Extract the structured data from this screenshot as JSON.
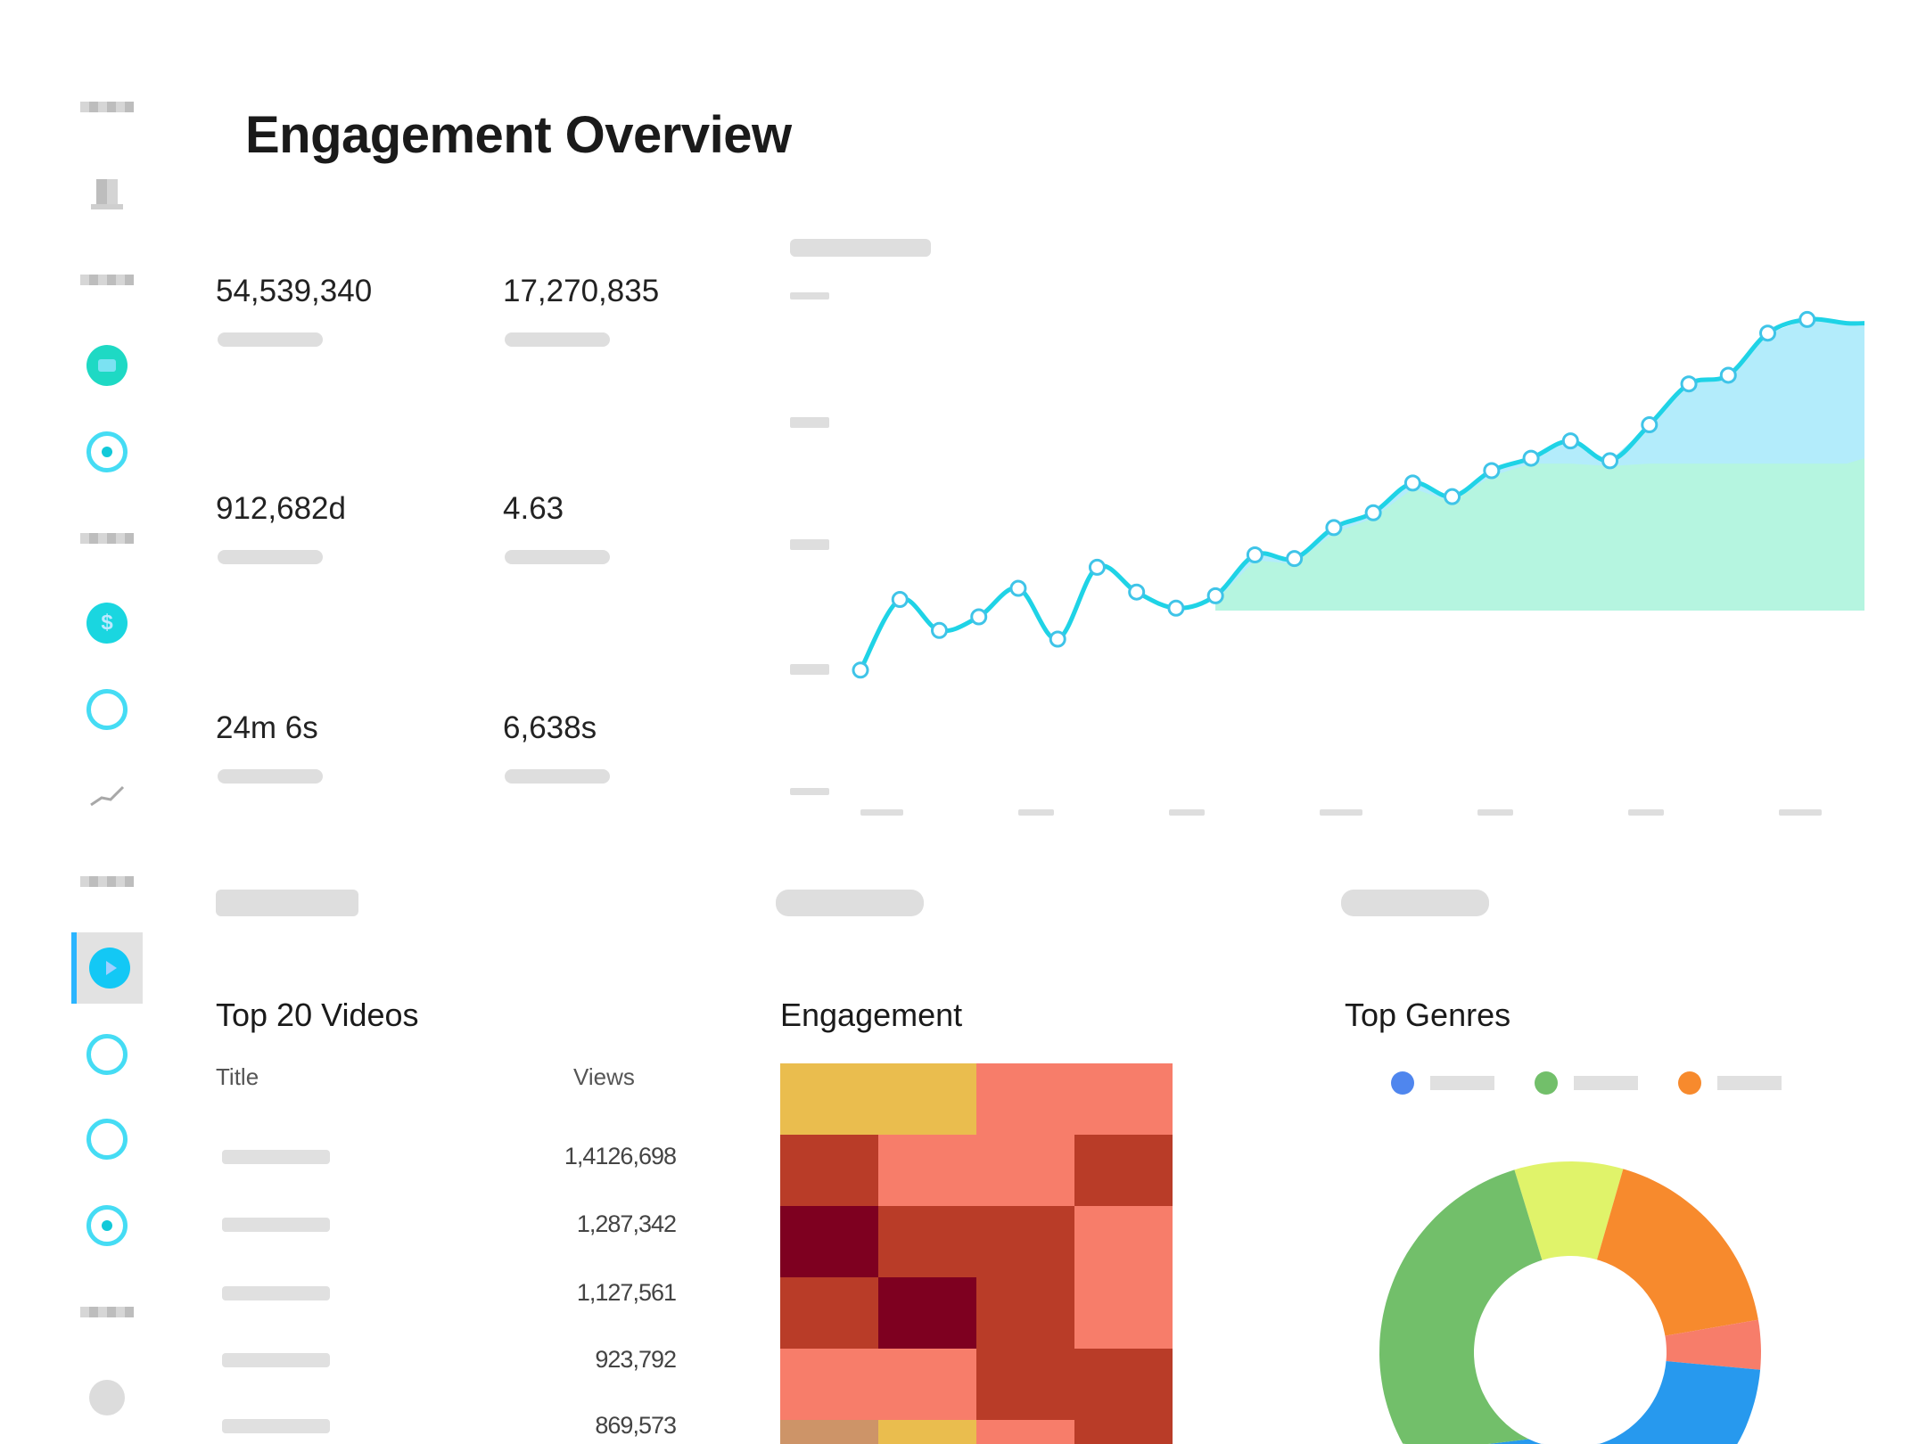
{
  "page": {
    "title": "Engagement Overview"
  },
  "sidebar": {
    "icons": [
      "user-icon",
      "app-icon",
      "target-icon",
      "dollar-icon",
      "circle-icon",
      "trend-icon",
      "play-icon",
      "circle-icon",
      "circle-icon",
      "target-icon",
      "avatar-icon"
    ],
    "active_icon": "play-icon",
    "dollar_glyph": "$",
    "accent": "#1ad6e0"
  },
  "kpis": [
    {
      "value": "54,539,340"
    },
    {
      "value": "17,270,835"
    },
    {
      "value": "912,682d"
    },
    {
      "value": "4.63"
    },
    {
      "value": "24m 6s"
    },
    {
      "value": "6,638s"
    }
  ],
  "top_videos": {
    "title": "Top 20 Videos",
    "columns": [
      "Title",
      "Views"
    ],
    "rows": [
      {
        "views": "1,4126,698"
      },
      {
        "views": "1,287,342"
      },
      {
        "views": "1,127,561"
      },
      {
        "views": "923,792"
      },
      {
        "views": "869,573"
      }
    ]
  },
  "engagement": {
    "title": "Engagement"
  },
  "top_genres": {
    "title": "Top Genres"
  },
  "chart_data": [
    {
      "type": "line",
      "title": "",
      "xlabel": "",
      "ylabel": "",
      "ylim": [
        0,
        4
      ],
      "grid": false,
      "line_color": "#1fd3e6",
      "fill_colors": [
        "#b3ecfb",
        "#b5f5e0"
      ],
      "x": [
        0,
        1,
        2,
        3,
        4,
        5,
        6,
        7,
        8,
        9,
        10,
        11,
        12,
        13,
        14,
        15,
        16,
        17,
        18,
        19,
        20,
        21,
        22,
        23,
        24,
        25
      ],
      "values": [
        0.98,
        1.55,
        1.3,
        1.41,
        1.64,
        1.23,
        1.81,
        1.61,
        1.48,
        1.58,
        1.91,
        1.88,
        2.13,
        2.25,
        2.49,
        2.38,
        2.59,
        2.69,
        2.83,
        2.67,
        2.96,
        3.29,
        3.36,
        3.7,
        3.81,
        3.78
      ]
    },
    {
      "type": "heatmap",
      "title": "Engagement",
      "color_scale": {
        "1": "#eabd4e",
        "2": "#cd9468",
        "3": "#f77d6a",
        "4": "#b93c28",
        "5": "#7e0020"
      },
      "values": [
        [
          1,
          1,
          3,
          3
        ],
        [
          4,
          3,
          3,
          4
        ],
        [
          5,
          4,
          4,
          3
        ],
        [
          4,
          5,
          4,
          3
        ],
        [
          3,
          3,
          4,
          4
        ],
        [
          2,
          1,
          3,
          4
        ]
      ]
    },
    {
      "type": "pie",
      "title": "Top Genres",
      "donut": true,
      "legend": "top",
      "legend_colors": [
        "#4f86ee",
        "#72bf6a",
        "#f78a2d"
      ],
      "slices": [
        {
          "value": 9.2,
          "color": "#e0f36a"
        },
        {
          "value": 17.8,
          "color": "#f78a2d"
        },
        {
          "value": 4.2,
          "color": "#f77d6a"
        },
        {
          "value": 30.6,
          "color": "#2799ee"
        },
        {
          "value": 38.2,
          "color": "#72bf6a"
        }
      ]
    }
  ]
}
